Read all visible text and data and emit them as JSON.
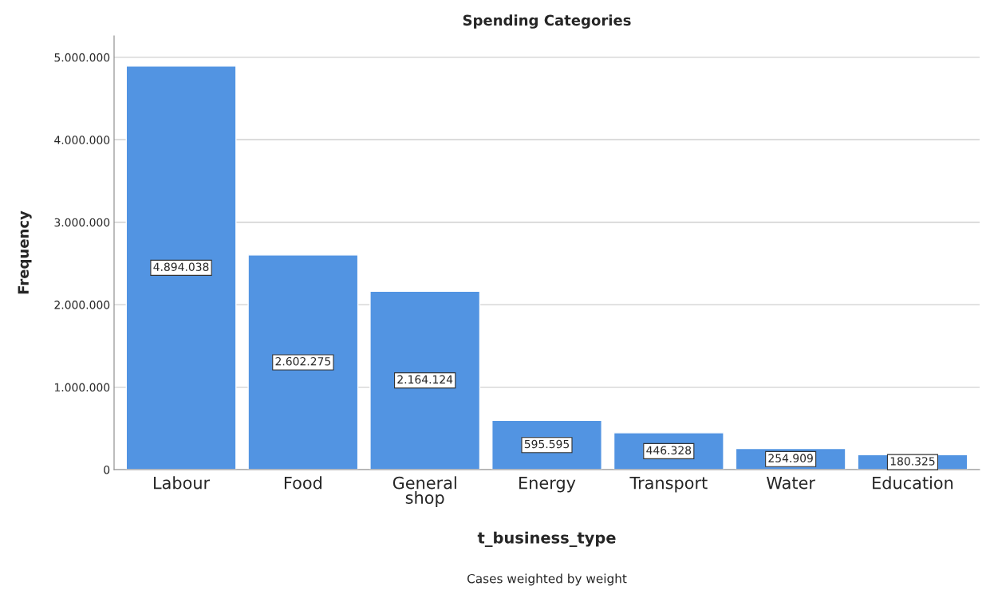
{
  "chart_data": {
    "type": "bar",
    "title": "Spending Categories",
    "xlabel": "t_business_type",
    "ylabel": "Frequency",
    "categories": [
      "Labour",
      "Food",
      "General shop",
      "Energy",
      "Transport",
      "Water",
      "Education"
    ],
    "values": [
      4894038,
      2602275,
      2164124,
      595595,
      446328,
      254909,
      180325
    ],
    "value_labels": [
      "4.894.038",
      "2.602.275",
      "2.164.124",
      "595.595",
      "446.328",
      "254.909",
      "180.325"
    ],
    "color": "#5294e2",
    "ylim": [
      0,
      5260000
    ],
    "yticks": [
      0,
      {
        "value": 1000000,
        "label": "1.000.000"
      },
      {
        "value": 2000000,
        "label": "2.000.000"
      },
      {
        "value": 3000000,
        "label": "3.000.000"
      },
      {
        "value": 4000000,
        "label": "4.000.000"
      },
      {
        "value": 5000000,
        "label": "5.000.000"
      }
    ],
    "grid": "y",
    "annotations": [
      "Cases weighted by weight"
    ]
  }
}
